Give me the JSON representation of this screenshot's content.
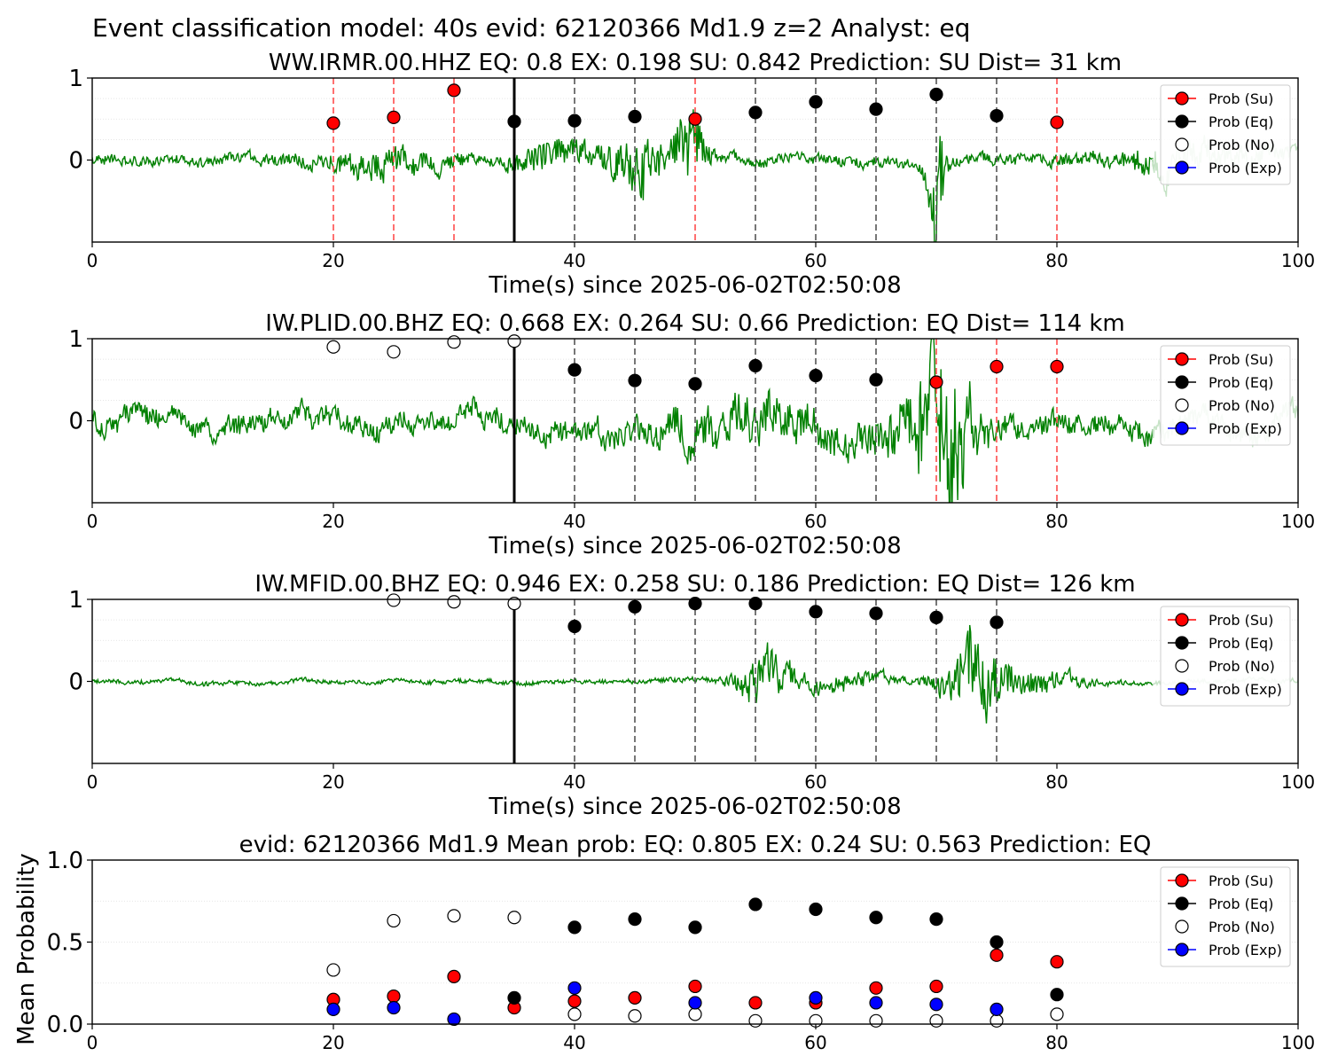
{
  "figure": {
    "suptitle": "Event classification model: 40s evid: 62120366 Md1.9 z=2 Analyst: eq"
  },
  "legend": [
    "Prob (Su)",
    "Prob (Eq)",
    "Prob (No)",
    "Prob (Exp)"
  ],
  "colors": {
    "su": "#ff0000",
    "eq": "#000000",
    "no": "#ffffff",
    "exp": "#0000ff",
    "waveform": "#008000",
    "waveform_faded": "#c6e3c6",
    "su_line": "#ff4d4d",
    "eq_line": "#555555"
  },
  "chart_data": [
    {
      "type": "line",
      "title": "WW.IRMR.00.HHZ   EQ: 0.8  EX: 0.198  SU: 0.842   Prediction: SU    Dist= 31 km",
      "xlabel": "Time(s) since 2025-06-02T02:50:08",
      "ylabel": "",
      "xlim": [
        0,
        100
      ],
      "ylim": [
        -1,
        1
      ],
      "x_ticks": [
        "0",
        "20",
        "40",
        "60",
        "80",
        "100"
      ],
      "y_ticks": [
        "0",
        "1"
      ],
      "grid": "horizontal dotted",
      "legend_position": "top-right",
      "reference_line": 35,
      "windows": [
        {
          "t": 20,
          "label": "su"
        },
        {
          "t": 25,
          "label": "su"
        },
        {
          "t": 30,
          "label": "su"
        },
        {
          "t": 40,
          "label": "eq"
        },
        {
          "t": 45,
          "label": "eq"
        },
        {
          "t": 50,
          "label": "su"
        },
        {
          "t": 55,
          "label": "eq"
        },
        {
          "t": 60,
          "label": "eq"
        },
        {
          "t": 65,
          "label": "eq"
        },
        {
          "t": 70,
          "label": "eq"
        },
        {
          "t": 75,
          "label": "eq"
        },
        {
          "t": 80,
          "label": "su"
        }
      ],
      "series": [
        {
          "name": "Prob (Su)",
          "points": [
            [
              20,
              0.45
            ],
            [
              25,
              0.52
            ],
            [
              30,
              0.85
            ],
            [
              50,
              0.5
            ],
            [
              80,
              0.46
            ]
          ]
        },
        {
          "name": "Prob (Eq)",
          "points": [
            [
              35,
              0.47
            ],
            [
              40,
              0.48
            ],
            [
              45,
              0.53
            ],
            [
              55,
              0.58
            ],
            [
              60,
              0.71
            ],
            [
              65,
              0.62
            ],
            [
              70,
              0.8
            ],
            [
              75,
              0.54
            ]
          ]
        },
        {
          "name": "Prob (No)",
          "points": []
        },
        {
          "name": "Prob (Exp)",
          "points": []
        }
      ],
      "waveform": {
        "fade_after": 88,
        "base_amp": 0.1,
        "bursts": [
          {
            "t": 24,
            "amp": 0.18,
            "w": 5
          },
          {
            "t": 38,
            "amp": 0.22,
            "w": 3
          },
          {
            "t": 45,
            "amp": 0.5,
            "w": 2.5
          },
          {
            "t": 49.5,
            "amp": 0.6,
            "w": 1.2
          },
          {
            "t": 70,
            "amp": 0.95,
            "w": 0.7
          },
          {
            "t": 91,
            "amp": 0.22,
            "w": 6
          }
        ]
      }
    },
    {
      "type": "line",
      "title": "IW.PLID.00.BHZ   EQ: 0.668  EX: 0.264  SU: 0.66   Prediction: EQ    Dist= 114 km",
      "xlabel": "Time(s) since 2025-06-02T02:50:08",
      "ylabel": "",
      "xlim": [
        0,
        100
      ],
      "ylim": [
        -1,
        1
      ],
      "x_ticks": [
        "0",
        "20",
        "40",
        "60",
        "80",
        "100"
      ],
      "y_ticks": [
        "0",
        "1"
      ],
      "grid": "horizontal dotted",
      "legend_position": "top-right",
      "reference_line": 35,
      "windows": [
        {
          "t": 40,
          "label": "eq"
        },
        {
          "t": 45,
          "label": "eq"
        },
        {
          "t": 50,
          "label": "eq"
        },
        {
          "t": 55,
          "label": "eq"
        },
        {
          "t": 60,
          "label": "eq"
        },
        {
          "t": 65,
          "label": "eq"
        },
        {
          "t": 70,
          "label": "su"
        },
        {
          "t": 75,
          "label": "su"
        },
        {
          "t": 80,
          "label": "su"
        }
      ],
      "series": [
        {
          "name": "Prob (Su)",
          "points": [
            [
              70,
              0.47
            ],
            [
              75,
              0.66
            ],
            [
              80,
              0.66
            ]
          ]
        },
        {
          "name": "Prob (Eq)",
          "points": [
            [
              40,
              0.62
            ],
            [
              45,
              0.49
            ],
            [
              50,
              0.45
            ],
            [
              55,
              0.67
            ],
            [
              60,
              0.55
            ],
            [
              65,
              0.5
            ]
          ]
        },
        {
          "name": "Prob (No)",
          "points": [
            [
              20,
              0.9
            ],
            [
              25,
              0.84
            ],
            [
              30,
              0.96
            ],
            [
              35,
              0.97
            ]
          ]
        },
        {
          "name": "Prob (Exp)",
          "points": []
        }
      ],
      "waveform": {
        "fade_after": 88,
        "base_amp": 0.2,
        "bursts": [
          {
            "t": 55,
            "amp": 0.25,
            "w": 8
          },
          {
            "t": 70,
            "amp": 0.8,
            "w": 3.5
          },
          {
            "t": 71,
            "amp": 0.55,
            "w": 1.2
          }
        ]
      }
    },
    {
      "type": "line",
      "title": "IW.MFID.00.BHZ   EQ: 0.946  EX: 0.258  SU: 0.186   Prediction: EQ    Dist= 126 km",
      "xlabel": "Time(s) since 2025-06-02T02:50:08",
      "ylabel": "",
      "xlim": [
        0,
        100
      ],
      "ylim": [
        -1,
        1
      ],
      "x_ticks": [
        "0",
        "20",
        "40",
        "60",
        "80",
        "100"
      ],
      "y_ticks": [
        "0",
        "1"
      ],
      "grid": "horizontal dotted",
      "legend_position": "top-right",
      "reference_line": 35,
      "windows": [
        {
          "t": 40,
          "label": "eq"
        },
        {
          "t": 45,
          "label": "eq"
        },
        {
          "t": 50,
          "label": "eq"
        },
        {
          "t": 55,
          "label": "eq"
        },
        {
          "t": 60,
          "label": "eq"
        },
        {
          "t": 65,
          "label": "eq"
        },
        {
          "t": 70,
          "label": "eq"
        },
        {
          "t": 75,
          "label": "eq"
        }
      ],
      "series": [
        {
          "name": "Prob (Su)",
          "points": []
        },
        {
          "name": "Prob (Eq)",
          "points": [
            [
              40,
              0.67
            ],
            [
              45,
              0.91
            ],
            [
              50,
              0.95
            ],
            [
              55,
              0.95
            ],
            [
              60,
              0.85
            ],
            [
              65,
              0.83
            ],
            [
              70,
              0.78
            ],
            [
              75,
              0.72
            ]
          ]
        },
        {
          "name": "Prob (No)",
          "points": [
            [
              25,
              0.99
            ],
            [
              30,
              0.97
            ],
            [
              35,
              0.95
            ]
          ]
        },
        {
          "name": "Prob (Exp)",
          "points": []
        }
      ],
      "waveform": {
        "fade_after": 88,
        "base_amp": 0.04,
        "bursts": [
          {
            "t": 56,
            "amp": 0.4,
            "w": 2.5
          },
          {
            "t": 62,
            "amp": 0.14,
            "w": 4
          },
          {
            "t": 73,
            "amp": 0.65,
            "w": 2.5
          },
          {
            "t": 78,
            "amp": 0.18,
            "w": 4
          }
        ]
      }
    },
    {
      "type": "scatter",
      "title": "evid: 62120366  Md1.9   Mean prob:   EQ: 0.805  EX: 0.24  SU: 0.563   Prediction: EQ",
      "xlabel": "",
      "ylabel": "Mean Probability",
      "xlim": [
        0,
        100
      ],
      "ylim": [
        0,
        1
      ],
      "x_ticks": [
        "0",
        "20",
        "40",
        "60",
        "80",
        "100"
      ],
      "y_ticks": [
        "0.0",
        "0.5",
        "1.0"
      ],
      "grid": "horizontal dotted",
      "legend_position": "top-right",
      "series": [
        {
          "name": "Prob (Su)",
          "points": [
            [
              20,
              0.15
            ],
            [
              25,
              0.17
            ],
            [
              30,
              0.29
            ],
            [
              35,
              0.1
            ],
            [
              40,
              0.14
            ],
            [
              45,
              0.16
            ],
            [
              50,
              0.23
            ],
            [
              55,
              0.13
            ],
            [
              60,
              0.13
            ],
            [
              65,
              0.22
            ],
            [
              70,
              0.23
            ],
            [
              75,
              0.42
            ],
            [
              80,
              0.38
            ]
          ]
        },
        {
          "name": "Prob (Eq)",
          "points": [
            [
              35,
              0.16
            ],
            [
              40,
              0.59
            ],
            [
              45,
              0.64
            ],
            [
              50,
              0.59
            ],
            [
              55,
              0.73
            ],
            [
              60,
              0.7
            ],
            [
              65,
              0.65
            ],
            [
              70,
              0.64
            ],
            [
              75,
              0.5
            ],
            [
              80,
              0.18
            ]
          ]
        },
        {
          "name": "Prob (No)",
          "points": [
            [
              20,
              0.33
            ],
            [
              25,
              0.63
            ],
            [
              30,
              0.66
            ],
            [
              35,
              0.65
            ],
            [
              40,
              0.06
            ],
            [
              45,
              0.05
            ],
            [
              50,
              0.06
            ],
            [
              55,
              0.02
            ],
            [
              60,
              0.02
            ],
            [
              65,
              0.02
            ],
            [
              70,
              0.02
            ],
            [
              75,
              0.02
            ],
            [
              80,
              0.06
            ]
          ]
        },
        {
          "name": "Prob (Exp)",
          "points": [
            [
              20,
              0.09
            ],
            [
              25,
              0.1
            ],
            [
              30,
              0.03
            ],
            [
              40,
              0.22
            ],
            [
              50,
              0.13
            ],
            [
              60,
              0.16
            ],
            [
              65,
              0.13
            ],
            [
              70,
              0.12
            ],
            [
              75,
              0.09
            ]
          ]
        }
      ]
    }
  ]
}
